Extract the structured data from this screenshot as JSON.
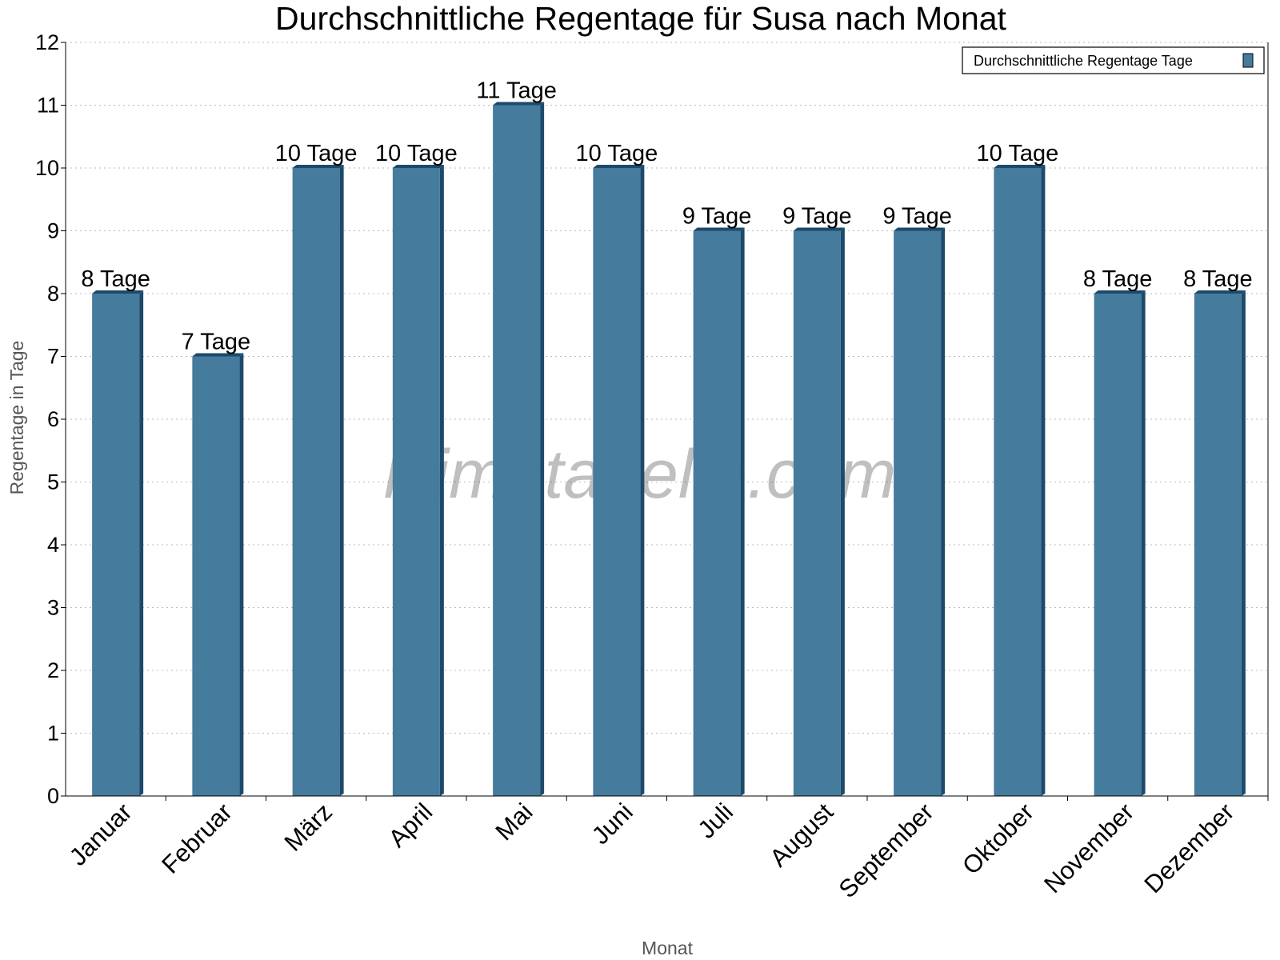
{
  "chart_data": {
    "type": "bar",
    "title": "Durchschnittliche Regentage für Susa nach Monat",
    "xlabel": "Monat",
    "ylabel": "Regentage in Tage",
    "categories": [
      "Januar",
      "Februar",
      "März",
      "April",
      "Mai",
      "Juni",
      "Juli",
      "August",
      "September",
      "Oktober",
      "November",
      "Dezember"
    ],
    "series": [
      {
        "name": "Durchschnittliche Regentage Tage",
        "values": [
          8,
          7,
          10,
          10,
          11,
          10,
          9,
          9,
          9,
          10,
          8,
          8
        ],
        "color": "#457b9d"
      }
    ],
    "data_labels": [
      "8 Tage",
      "7 Tage",
      "10 Tage",
      "10 Tage",
      "11 Tage",
      "10 Tage",
      "9 Tage",
      "9 Tage",
      "9 Tage",
      "10 Tage",
      "8 Tage",
      "8 Tage"
    ],
    "ylim": [
      0,
      12
    ],
    "yticks": [
      0,
      1,
      2,
      3,
      4,
      5,
      6,
      7,
      8,
      9,
      10,
      11,
      12
    ],
    "grid": true,
    "legend_position": "top-right",
    "watermark": "klimatabelle.com"
  }
}
